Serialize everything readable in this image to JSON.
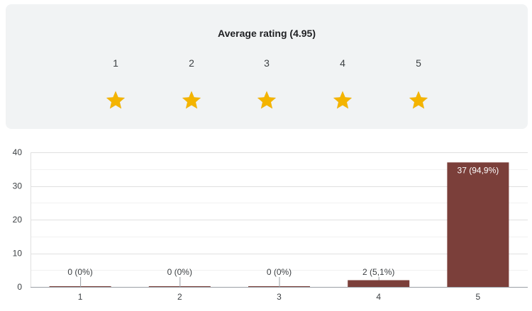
{
  "rating": {
    "title": "Average rating (4.95)",
    "average": 4.95,
    "scale": [
      "1",
      "2",
      "3",
      "4",
      "5"
    ],
    "star_color": "#f4b400",
    "star_empty_color": "#bdc1c6"
  },
  "chart_data": {
    "type": "bar",
    "categories": [
      "1",
      "2",
      "3",
      "4",
      "5"
    ],
    "values": [
      0,
      0,
      0,
      2,
      37
    ],
    "data_labels": [
      "0 (0%)",
      "0 (0%)",
      "0 (0%)",
      "2 (5,1%)",
      "37 (94,9%)"
    ],
    "ylim": [
      0,
      40
    ],
    "yticks": [
      0,
      10,
      20,
      30,
      40
    ],
    "grid": true,
    "bar_color": "#7b3f3a"
  }
}
